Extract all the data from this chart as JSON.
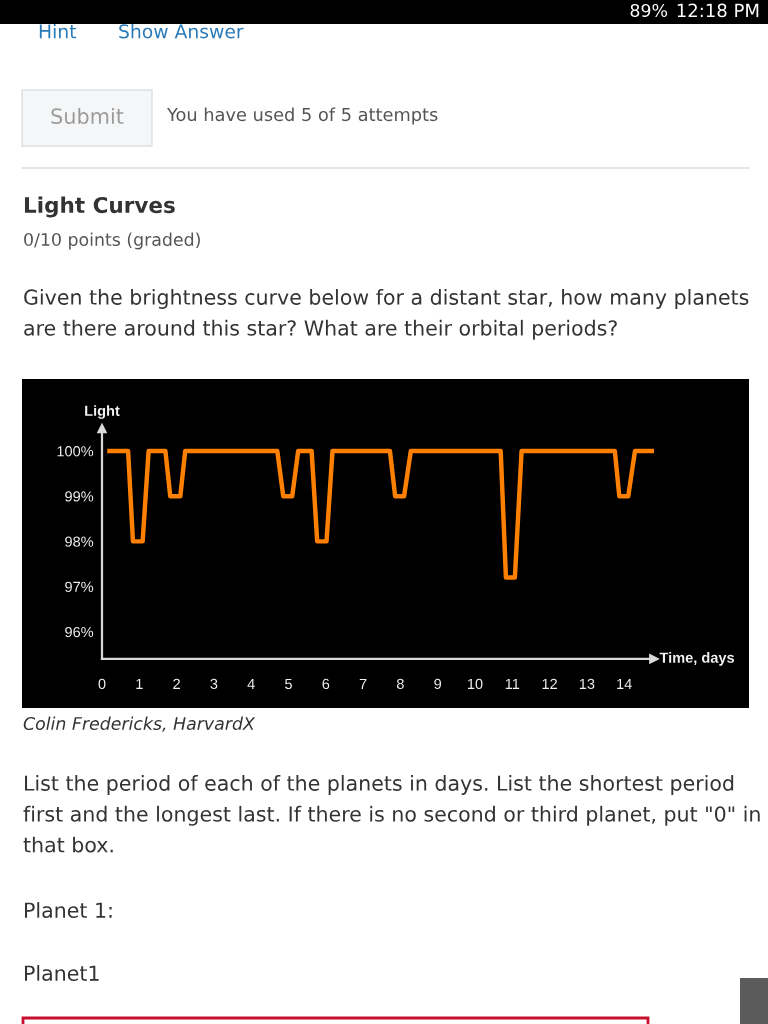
{
  "chart_data": {
    "type": "line",
    "title": "Light Curves",
    "subtitle": "0/10 points (graded)",
    "xlabel": "Time, days",
    "ylabel": "Light",
    "x": [
      0.2,
      0.7,
      0.83,
      1.09,
      1.25,
      1.7,
      1.83,
      2.1,
      2.23,
      4.7,
      4.86,
      5.1,
      5.26,
      5.62,
      5.77,
      6.02,
      6.18,
      7.72,
      7.86,
      8.1,
      8.28,
      10.69,
      10.83,
      11.07,
      11.25,
      13.75,
      13.87,
      14.11,
      14.29,
      14.74
    ],
    "series": [
      {
        "color": "#ff8000",
        "values": [
          100,
          100,
          98,
          98,
          100,
          100,
          99,
          99,
          100,
          100,
          99,
          99,
          100,
          100,
          98,
          98,
          100,
          100,
          99,
          99,
          100,
          100,
          97.2,
          97.2,
          100,
          100,
          99,
          99,
          100,
          100
        ]
      }
    ],
    "xlim": [
      0,
      14.8
    ],
    "ylim": [
      95.4,
      100.5
    ],
    "xticks": [
      0,
      1,
      2,
      3,
      4,
      5,
      6,
      7,
      8,
      9,
      10,
      11,
      12,
      13,
      14
    ],
    "yticks": [
      {
        "value": 96,
        "label": "96%"
      },
      {
        "value": 97,
        "label": "97%"
      },
      {
        "value": 98,
        "label": "98%"
      },
      {
        "value": 99,
        "label": "99%"
      },
      {
        "value": 100,
        "label": "100%"
      }
    ],
    "line_style": "solid",
    "annotations": [
      "Hint",
      "Show Answer",
      "Submit",
      "You have used 5 of 5 attempts",
      "Given the brightness curve below for a distant star, how many planets are there around this star? What are their orbital periods?",
      "Colin Fredericks, HarvardX",
      "List the period of each of the planets in days. List the shortest period first and the longest last. If there is no second or third planet, put \"0\" in that box.",
      "Planet 1:",
      "Planet1",
      "89%",
      "12:18 PM"
    ]
  }
}
